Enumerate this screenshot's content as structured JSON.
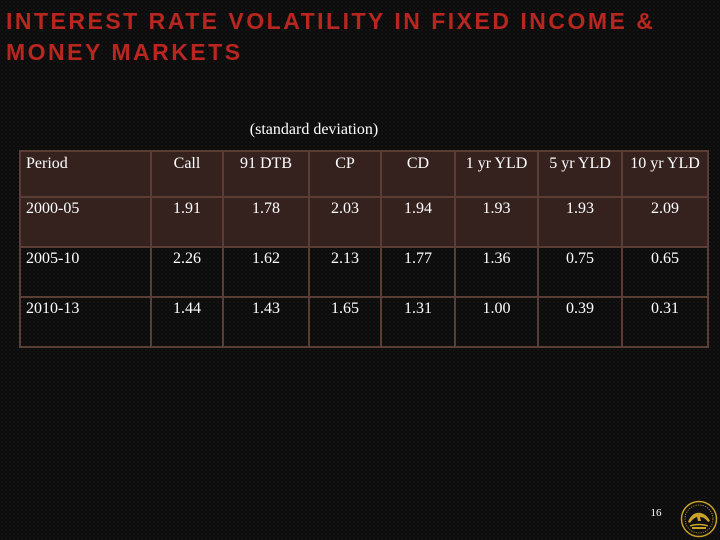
{
  "slide": {
    "title": "INTEREST RATE VOLATILITY IN FIXED INCOME & MONEY MARKETS",
    "subtitle": "(standard deviation)",
    "page_number": "16"
  },
  "table": {
    "headers": [
      "Period",
      "Call",
      "91 DTB",
      "CP",
      "CD",
      "1 yr YLD",
      "5 yr YLD",
      "10 yr YLD"
    ],
    "rows": [
      [
        "2000-05",
        "1.91",
        "1.78",
        "2.03",
        "1.94",
        "1.93",
        "1.93",
        "2.09"
      ],
      [
        "2005-10",
        "2.26",
        "1.62",
        "2.13",
        "1.77",
        "1.36",
        "0.75",
        "0.65"
      ],
      [
        "2010-13",
        "1.44",
        "1.43",
        "1.65",
        "1.31",
        "1.00",
        "0.39",
        "0.31"
      ]
    ]
  },
  "colors": {
    "title": "#b8261f",
    "text": "#ffffff",
    "header_fill": "#35221f",
    "border": "#5a3d35",
    "logo": "#c9a227"
  },
  "icons": {
    "logo": "emblem-seal"
  }
}
